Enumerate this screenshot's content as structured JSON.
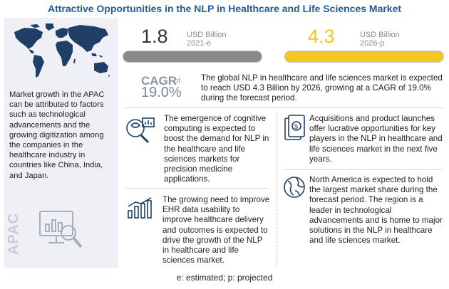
{
  "title": "Attractive Opportunities in the NLP in Healthcare and Life Sciences Market",
  "left_panel": {
    "text": "Market growth in the APAC can be attributed to factors such as technological advancements and the growing digitization among the companies in the healthcare industry in countries like China, India, and Japan.",
    "region_label": "APAC"
  },
  "stats": [
    {
      "value": "1.8",
      "unit": "USD Billion",
      "year": "2021-e",
      "bar_fill_fraction": 1.0,
      "color": "#8a8a8a"
    },
    {
      "value": "4.3",
      "unit": "USD Billion",
      "year": "2026-p",
      "bar_fill_fraction": 1.0,
      "color": "#f6c423"
    }
  ],
  "cagr": {
    "label": "CAGR",
    "of": "of",
    "value": "19.0%"
  },
  "summary": "The global NLP in healthcare and life sciences market is expected to reach USD 4.3 Billion by 2026, growing at a CAGR of 19.0% during the forecast period.",
  "cards": [
    {
      "icon": "cognitive-computing-icon",
      "text": "The emergence of cognitive computing is expected to boost the demand for NLP in the healthcare and life sciences markets for precision medicine applications."
    },
    {
      "icon": "money-icon",
      "text": "Acquisitions and product launches offer lucrative opportunities for key players in the NLP in healthcare and life sciences market in the next five years."
    },
    {
      "icon": "growth-chart-icon",
      "text": "The growing need to improve EHR data usability to improve healthcare delivery and outcomes is expected to drive the growth of the NLP in healthcare and life sciences market."
    },
    {
      "icon": "globe-icon",
      "text": "North America is expected to hold the largest market share during the forecast period. The region is a leader in technological advancements and is home to major solutions in the NLP in healthcare and life sciences market."
    }
  ],
  "footer": "e: estimated; p: projected",
  "colors": {
    "title": "#1f5e99",
    "accent": "#f6c423",
    "panel": "#eef0f5"
  }
}
